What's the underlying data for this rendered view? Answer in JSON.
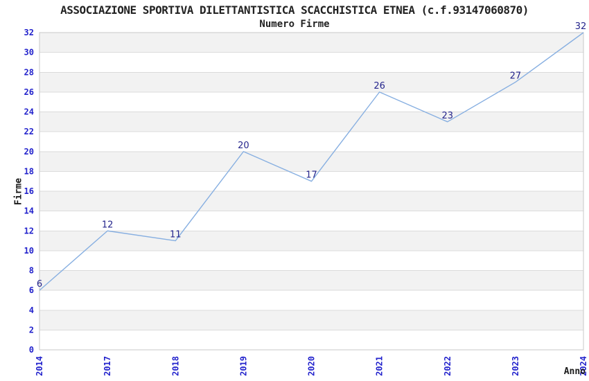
{
  "header": {
    "title": "ASSOCIAZIONE SPORTIVA DILETTANTISTICA SCACCHISTICA ETNEA (c.f.93147060870)",
    "subtitle": "Numero Firme"
  },
  "chart_data": {
    "type": "line",
    "title": "ASSOCIAZIONE SPORTIVA DILETTANTISTICA SCACCHISTICA ETNEA (c.f.93147060870)",
    "subtitle": "Numero Firme",
    "xlabel": "Anno",
    "ylabel": "Firme",
    "categories": [
      "2014",
      "2017",
      "2018",
      "2019",
      "2020",
      "2021",
      "2022",
      "2023",
      "2024"
    ],
    "values": [
      6,
      12,
      11,
      20,
      17,
      26,
      23,
      27,
      32
    ],
    "ylim": [
      0,
      32
    ],
    "ytick_step": 2,
    "grid": true,
    "legend_position": "none",
    "point_labels_shown": true,
    "x_tick_rotation": -90,
    "band_pattern": "alternating gray/white bands every 2 units"
  },
  "style": {
    "line_color": "#87AFE1",
    "data_label_color": "#24248C",
    "tick_label_color": "#2222CC",
    "band_color": "#F2F2F2",
    "grid_color": "#DBDBDB",
    "border_color": "#C8C8C8",
    "background_color": "#FFFFFF",
    "title_color": "#222222"
  }
}
